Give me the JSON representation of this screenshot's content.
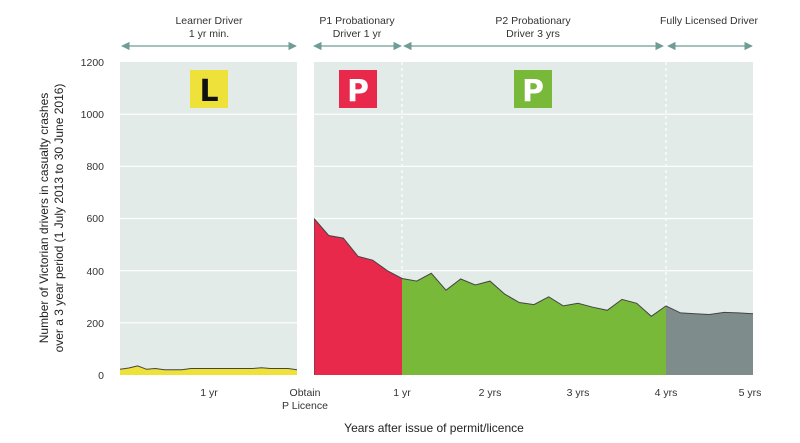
{
  "chart_data": {
    "type": "area",
    "xlabel": "Years after issue of permit/licence",
    "ylabel_line1": "Number of Victorian drivers in casualty crashes",
    "ylabel_line2": "over a 3 year period (1 July 2013 to 30 June 2016)",
    "ylim": [
      0,
      1200
    ],
    "y_ticks": [
      "0",
      "200",
      "400",
      "600",
      "800",
      "1000",
      "1200"
    ],
    "x_ticks": [
      "1 yr",
      "Obtain",
      "P Licence",
      "1 yr",
      "2 yrs",
      "3 yrs",
      "4 yrs",
      "5 yrs"
    ],
    "stages": [
      {
        "label_line1": "Learner Driver",
        "label_line2": "1 yr min."
      },
      {
        "label_line1": "P1 Probationary",
        "label_line2": "Driver 1 yr"
      },
      {
        "label_line1": "P2 Probationary",
        "label_line2": "Driver 3 yrs"
      },
      {
        "label_line1": "Fully Licensed Driver",
        "label_line2": ""
      }
    ],
    "badges": [
      {
        "letter": "L",
        "bg": "#ede13a",
        "fg": "#111111"
      },
      {
        "letter": "P",
        "bg": "#e8294b",
        "fg": "#ffffff"
      },
      {
        "letter": "P",
        "bg": "#79b93a",
        "fg": "#ffffff"
      }
    ],
    "series": [
      {
        "stage": "Learner Driver",
        "color": "#ede13a",
        "x": [
          0,
          0.1,
          0.2,
          0.3,
          0.4,
          0.5,
          0.6,
          0.7,
          0.8,
          0.9,
          1.0,
          1.1,
          1.2,
          1.3,
          1.4,
          1.5,
          1.6,
          1.7,
          1.8,
          1.9,
          2.0
        ],
        "values": [
          22,
          27,
          35,
          22,
          25,
          20,
          20,
          20,
          25,
          25,
          25,
          25,
          25,
          25,
          25,
          25,
          28,
          25,
          25,
          25,
          20
        ]
      },
      {
        "stage": "P1 Probationary Driver",
        "color": "#e8294b",
        "x": [
          0,
          0.167,
          0.333,
          0.5,
          0.667,
          0.833,
          1.0
        ],
        "values": [
          600,
          535,
          525,
          455,
          440,
          400,
          370
        ]
      },
      {
        "stage": "P2 Probationary Driver",
        "color": "#79b93a",
        "x": [
          1.0,
          1.167,
          1.333,
          1.5,
          1.667,
          1.833,
          2.0,
          2.167,
          2.333,
          2.5,
          2.667,
          2.833,
          3.0,
          3.167,
          3.333,
          3.5,
          3.667,
          3.833,
          4.0
        ],
        "values": [
          370,
          360,
          390,
          325,
          368,
          345,
          360,
          310,
          278,
          270,
          300,
          265,
          275,
          260,
          248,
          290,
          275,
          225,
          265
        ]
      },
      {
        "stage": "Fully Licensed Driver",
        "color": "#7f8c8c",
        "x": [
          4.0,
          4.167,
          4.333,
          4.5,
          4.667,
          4.833,
          5.0
        ],
        "values": [
          265,
          238,
          235,
          232,
          240,
          238,
          235
        ]
      }
    ],
    "grid": true,
    "colors": {
      "plot_bg": "#e3ebe8",
      "grid": "#ffffff",
      "arrow": "#6f9c95",
      "line": "#444444"
    }
  }
}
